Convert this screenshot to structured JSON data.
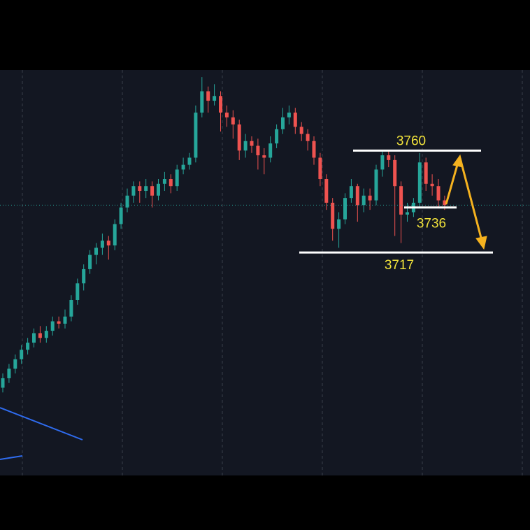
{
  "chart_data": {
    "type": "candlestick",
    "candles": [
      [
        3660,
        3666,
        3658,
        3664
      ],
      [
        3664,
        3670,
        3662,
        3668
      ],
      [
        3668,
        3674,
        3666,
        3672
      ],
      [
        3672,
        3678,
        3670,
        3676
      ],
      [
        3676,
        3681,
        3674,
        3679
      ],
      [
        3679,
        3685,
        3677,
        3683
      ],
      [
        3683,
        3686,
        3679,
        3681
      ],
      [
        3681,
        3686,
        3679,
        3684
      ],
      [
        3684,
        3690,
        3682,
        3688
      ],
      [
        3688,
        3690,
        3685,
        3687
      ],
      [
        3687,
        3693,
        3685,
        3690
      ],
      [
        3690,
        3699,
        3688,
        3697
      ],
      [
        3697,
        3706,
        3695,
        3704
      ],
      [
        3704,
        3712,
        3701,
        3710
      ],
      [
        3710,
        3718,
        3708,
        3716
      ],
      [
        3716,
        3721,
        3712,
        3719
      ],
      [
        3719,
        3725,
        3716,
        3722
      ],
      [
        3722,
        3724,
        3714,
        3720
      ],
      [
        3720,
        3731,
        3718,
        3729
      ],
      [
        3729,
        3738,
        3727,
        3736
      ],
      [
        3736,
        3744,
        3734,
        3741
      ],
      [
        3741,
        3747,
        3738,
        3745
      ],
      [
        3745,
        3747,
        3738,
        3743
      ],
      [
        3743,
        3748,
        3740,
        3745
      ],
      [
        3745,
        3747,
        3736,
        3741
      ],
      [
        3741,
        3748,
        3739,
        3746
      ],
      [
        3746,
        3751,
        3743,
        3748
      ],
      [
        3748,
        3750,
        3742,
        3745
      ],
      [
        3745,
        3754,
        3743,
        3752
      ],
      [
        3752,
        3757,
        3750,
        3754
      ],
      [
        3754,
        3759,
        3752,
        3757
      ],
      [
        3757,
        3779,
        3755,
        3776
      ],
      [
        3776,
        3791,
        3774,
        3785
      ],
      [
        3785,
        3787,
        3776,
        3781
      ],
      [
        3781,
        3788,
        3779,
        3783
      ],
      [
        3783,
        3785,
        3768,
        3776
      ],
      [
        3776,
        3779,
        3770,
        3774
      ],
      [
        3774,
        3777,
        3765,
        3771
      ],
      [
        3771,
        3773,
        3756,
        3760
      ],
      [
        3760,
        3767,
        3757,
        3764
      ],
      [
        3764,
        3766,
        3759,
        3762
      ],
      [
        3762,
        3765,
        3752,
        3758
      ],
      [
        3758,
        3761,
        3750,
        3757
      ],
      [
        3757,
        3766,
        3755,
        3763
      ],
      [
        3763,
        3771,
        3761,
        3769
      ],
      [
        3769,
        3778,
        3767,
        3774
      ],
      [
        3774,
        3779,
        3771,
        3776
      ],
      [
        3776,
        3778,
        3767,
        3770
      ],
      [
        3770,
        3772,
        3764,
        3767
      ],
      [
        3767,
        3769,
        3760,
        3764
      ],
      [
        3764,
        3766,
        3754,
        3757
      ],
      [
        3757,
        3759,
        3745,
        3748
      ],
      [
        3748,
        3750,
        3735,
        3738
      ],
      [
        3738,
        3740,
        3722,
        3727
      ],
      [
        3727,
        3734,
        3719,
        3731
      ],
      [
        3731,
        3742,
        3729,
        3740
      ],
      [
        3740,
        3748,
        3738,
        3745
      ],
      [
        3745,
        3746,
        3730,
        3737
      ],
      [
        3737,
        3744,
        3734,
        3741
      ],
      [
        3741,
        3744,
        3735,
        3739
      ],
      [
        3739,
        3754,
        3737,
        3752
      ],
      [
        3752,
        3760,
        3749,
        3758
      ],
      [
        3758,
        3760,
        3753,
        3756
      ],
      [
        3756,
        3758,
        3724,
        3745
      ],
      [
        3745,
        3747,
        3721,
        3733
      ],
      [
        3733,
        3738,
        3730,
        3734
      ],
      [
        3734,
        3740,
        3732,
        3738
      ],
      [
        3738,
        3759,
        3736,
        3755
      ],
      [
        3755,
        3757,
        3743,
        3746
      ],
      [
        3746,
        3750,
        3741,
        3745
      ],
      [
        3745,
        3748,
        3736,
        3739
      ],
      [
        3739,
        3741,
        3735,
        3737
      ]
    ],
    "up_color": "#26a69a",
    "down_color": "#ef5350",
    "ylim": [
      3623,
      3794
    ],
    "levels": [
      3760,
      3736,
      3717
    ],
    "price_line": 3737
  }
}
